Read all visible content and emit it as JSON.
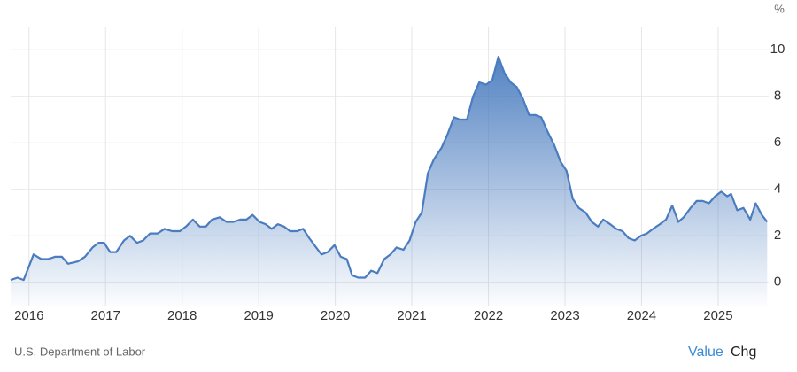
{
  "chart_data": {
    "type": "area",
    "y_unit": "%",
    "color": "#4a7cbf",
    "grid": true,
    "source": "U.S. Department of Labor",
    "x": [
      2015.76,
      2015.85,
      2015.93,
      2016.06,
      2016.16,
      2016.25,
      2016.34,
      2016.43,
      2016.51,
      2016.64,
      2016.73,
      2016.83,
      2016.91,
      2016.98,
      2017.06,
      2017.14,
      2017.24,
      2017.32,
      2017.41,
      2017.49,
      2017.58,
      2017.68,
      2017.77,
      2017.87,
      2017.97,
      2018.05,
      2018.14,
      2018.23,
      2018.31,
      2018.39,
      2018.49,
      2018.58,
      2018.67,
      2018.76,
      2018.84,
      2018.92,
      2019.01,
      2019.09,
      2019.17,
      2019.25,
      2019.33,
      2019.41,
      2019.5,
      2019.58,
      2019.66,
      2019.75,
      2019.82,
      2019.9,
      2019.99,
      2020.07,
      2020.15,
      2020.22,
      2020.3,
      2020.39,
      2020.47,
      2020.55,
      2020.64,
      2020.72,
      2020.8,
      2020.89,
      2020.97,
      2021.05,
      2021.13,
      2021.21,
      2021.29,
      2021.39,
      2021.47,
      2021.55,
      2021.63,
      2021.72,
      2021.8,
      2021.88,
      2021.97,
      2022.05,
      2022.13,
      2022.21,
      2022.29,
      2022.37,
      2022.45,
      2022.53,
      2022.61,
      2022.69,
      2022.77,
      2022.86,
      2022.94,
      2023.02,
      2023.1,
      2023.18,
      2023.27,
      2023.35,
      2023.43,
      2023.5,
      2023.59,
      2023.67,
      2023.75,
      2023.83,
      2023.91,
      2023.99,
      2024.07,
      2024.15,
      2024.24,
      2024.32,
      2024.4,
      2024.48,
      2024.55,
      2024.64,
      2024.72,
      2024.8,
      2024.88,
      2024.96,
      2025.04,
      2025.12,
      2025.17,
      2025.25,
      2025.33,
      2025.42,
      2025.49,
      2025.57,
      2025.64
    ],
    "values": [
      0.1,
      0.2,
      0.1,
      1.2,
      1.0,
      1.0,
      1.1,
      1.1,
      0.8,
      0.9,
      1.1,
      1.5,
      1.7,
      1.7,
      1.3,
      1.3,
      1.8,
      2.0,
      1.7,
      1.8,
      2.1,
      2.1,
      2.3,
      2.2,
      2.2,
      2.4,
      2.7,
      2.4,
      2.4,
      2.7,
      2.8,
      2.6,
      2.6,
      2.7,
      2.7,
      2.9,
      2.6,
      2.5,
      2.3,
      2.5,
      2.4,
      2.2,
      2.2,
      2.3,
      1.9,
      1.5,
      1.2,
      1.3,
      1.6,
      1.1,
      1.0,
      0.3,
      0.2,
      0.2,
      0.5,
      0.4,
      1.0,
      1.2,
      1.5,
      1.4,
      1.8,
      2.6,
      3.0,
      4.7,
      5.3,
      5.8,
      6.4,
      7.1,
      7.0,
      7.0,
      8.0,
      8.6,
      8.5,
      8.7,
      9.7,
      9.0,
      8.6,
      8.4,
      7.9,
      7.2,
      7.2,
      7.1,
      6.5,
      5.9,
      5.2,
      4.8,
      3.6,
      3.2,
      3.0,
      2.6,
      2.4,
      2.7,
      2.5,
      2.3,
      2.2,
      1.9,
      1.8,
      2.0,
      2.1,
      2.3,
      2.5,
      2.7,
      3.3,
      2.6,
      2.8,
      3.2,
      3.5,
      3.5,
      3.4,
      3.7,
      3.9,
      3.7,
      3.8,
      3.1,
      3.2,
      2.7,
      3.4,
      2.9,
      2.6
    ],
    "xlim": [
      2015.76,
      2025.66
    ],
    "xticks": [
      2016,
      2017,
      2018,
      2019,
      2020,
      2021,
      2022,
      2023,
      2024,
      2025
    ],
    "ylim": [
      -1,
      11
    ],
    "yticks": [
      0,
      2,
      4,
      6,
      8,
      10
    ]
  },
  "controls": [
    "Value",
    "Chg"
  ]
}
